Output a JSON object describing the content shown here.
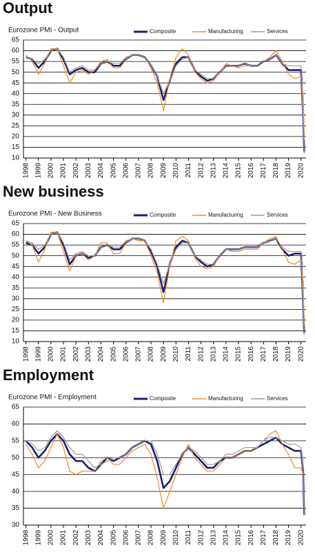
{
  "chart_data": [
    {
      "type": "line",
      "title": "Output",
      "subtitle": "Eurozone  PMI - Output",
      "legend": "top-right",
      "grid": true,
      "x": [
        1998,
        1998.5,
        1999,
        1999.5,
        2000,
        2000.5,
        2001,
        2001.5,
        2002,
        2002.5,
        2003,
        2003.5,
        2004,
        2004.5,
        2005,
        2005.5,
        2006,
        2006.5,
        2007,
        2007.5,
        2008,
        2008.5,
        2009,
        2009.5,
        2010,
        2010.5,
        2011,
        2011.5,
        2012,
        2012.5,
        2013,
        2013.5,
        2014,
        2014.5,
        2015,
        2015.5,
        2016,
        2016.5,
        2017,
        2017.5,
        2018,
        2018.5,
        2019,
        2019.5,
        2020,
        2020.17,
        2020.25
      ],
      "xlim": [
        1997.8,
        2020.4
      ],
      "xticks": [
        1998,
        1999,
        2000,
        2001,
        2002,
        2003,
        2004,
        2005,
        2006,
        2007,
        2008,
        2009,
        2010,
        2011,
        2012,
        2013,
        2014,
        2015,
        2016,
        2017,
        2018,
        2019,
        2020
      ],
      "ylim": [
        10,
        65
      ],
      "yticks": [
        10,
        15,
        20,
        25,
        30,
        35,
        40,
        45,
        50,
        55,
        60,
        65
      ],
      "series": [
        {
          "name": "Composite",
          "color": "#1a1f71",
          "values": [
            57,
            56,
            52,
            55,
            60,
            61,
            56,
            49,
            51,
            52,
            50,
            50,
            54,
            55,
            53,
            53,
            56,
            58,
            58,
            57,
            53,
            48,
            37,
            46,
            54,
            57,
            57,
            51,
            48,
            46,
            47,
            50,
            53,
            53,
            53,
            54,
            53,
            53,
            55,
            56,
            58,
            54,
            51,
            51,
            51,
            29,
            13
          ]
        },
        {
          "name": "Manufacturing",
          "color": "#f08a24",
          "values": [
            58,
            55,
            49,
            54,
            61,
            61,
            53,
            45,
            50,
            51,
            49,
            51,
            55,
            56,
            52,
            52,
            56,
            58,
            58,
            57,
            52,
            45,
            32,
            47,
            57,
            61,
            58,
            50,
            47,
            45,
            46,
            50,
            54,
            53,
            52,
            53,
            53,
            53,
            55,
            57,
            60,
            55,
            49,
            47,
            48,
            39,
            18
          ]
        },
        {
          "name": "Services",
          "color": "#9a9a9a",
          "values": [
            57,
            56,
            54,
            56,
            60,
            61,
            57,
            50,
            52,
            53,
            51,
            51,
            54,
            55,
            54,
            54,
            57,
            58,
            58,
            57,
            53,
            48,
            40,
            46,
            53,
            56,
            57,
            51,
            49,
            47,
            47,
            50,
            53,
            53,
            53,
            54,
            53,
            53,
            55,
            56,
            58,
            54,
            53,
            53,
            53,
            27,
            12
          ]
        }
      ]
    },
    {
      "type": "line",
      "title": "New business",
      "subtitle": "Eurozone  PMI - New Business",
      "legend": "top-right",
      "grid": true,
      "x": [
        1998,
        1998.5,
        1999,
        1999.5,
        2000,
        2000.5,
        2001,
        2001.5,
        2002,
        2002.5,
        2003,
        2003.5,
        2004,
        2004.5,
        2005,
        2005.5,
        2006,
        2006.5,
        2007,
        2007.5,
        2008,
        2008.5,
        2009,
        2009.5,
        2010,
        2010.5,
        2011,
        2011.5,
        2012,
        2012.5,
        2013,
        2013.5,
        2014,
        2014.5,
        2015,
        2015.5,
        2016,
        2016.5,
        2017,
        2017.5,
        2018,
        2018.5,
        2019,
        2019.5,
        2020,
        2020.17,
        2020.25
      ],
      "xlim": [
        1997.8,
        2020.4
      ],
      "xticks": [
        1998,
        1999,
        2000,
        2001,
        2002,
        2003,
        2004,
        2005,
        2006,
        2007,
        2008,
        2009,
        2010,
        2011,
        2012,
        2013,
        2014,
        2015,
        2016,
        2017,
        2018,
        2019,
        2020
      ],
      "ylim": [
        10,
        65
      ],
      "yticks": [
        10,
        15,
        20,
        25,
        30,
        35,
        40,
        45,
        50,
        55,
        60,
        65
      ],
      "series": [
        {
          "name": "Composite",
          "color": "#1a1f71",
          "values": [
            56,
            55,
            51,
            54,
            60,
            61,
            55,
            46,
            50,
            51,
            49,
            50,
            54,
            55,
            53,
            53,
            56,
            58,
            58,
            57,
            52,
            45,
            33,
            46,
            54,
            57,
            56,
            50,
            47,
            45,
            46,
            50,
            53,
            53,
            53,
            54,
            54,
            54,
            56,
            57,
            58,
            53,
            50,
            51,
            51,
            27,
            14
          ]
        },
        {
          "name": "Manufacturing",
          "color": "#f08a24",
          "values": [
            57,
            55,
            47,
            53,
            61,
            61,
            52,
            43,
            50,
            51,
            48,
            50,
            56,
            56,
            51,
            51,
            56,
            58,
            57,
            57,
            50,
            42,
            28,
            45,
            57,
            59,
            57,
            49,
            45,
            44,
            45,
            50,
            53,
            52,
            52,
            53,
            53,
            53,
            56,
            58,
            59,
            53,
            47,
            46,
            48,
            38,
            17
          ]
        },
        {
          "name": "Services",
          "color": "#9a9a9a",
          "values": [
            57,
            56,
            53,
            55,
            60,
            61,
            56,
            48,
            51,
            52,
            50,
            50,
            54,
            55,
            54,
            54,
            57,
            58,
            58,
            57,
            53,
            46,
            37,
            46,
            53,
            56,
            56,
            50,
            48,
            46,
            46,
            50,
            53,
            53,
            53,
            54,
            54,
            54,
            56,
            57,
            58,
            54,
            52,
            52,
            52,
            26,
            13
          ]
        }
      ]
    },
    {
      "type": "line",
      "title": "Employment",
      "subtitle": "Eurozone  PMI - Employment",
      "legend": "top-right",
      "grid": true,
      "x": [
        1998,
        1998.5,
        1999,
        1999.5,
        2000,
        2000.5,
        2001,
        2001.5,
        2002,
        2002.5,
        2003,
        2003.5,
        2004,
        2004.5,
        2005,
        2005.5,
        2006,
        2006.5,
        2007,
        2007.5,
        2008,
        2008.5,
        2009,
        2009.5,
        2010,
        2010.5,
        2011,
        2011.5,
        2012,
        2012.5,
        2013,
        2013.5,
        2014,
        2014.5,
        2015,
        2015.5,
        2016,
        2016.5,
        2017,
        2017.5,
        2018,
        2018.5,
        2019,
        2019.5,
        2020,
        2020.17,
        2020.25
      ],
      "xlim": [
        1997.8,
        2020.4
      ],
      "xticks": [
        1998,
        1999,
        2000,
        2001,
        2002,
        2003,
        2004,
        2005,
        2006,
        2007,
        2008,
        2009,
        2010,
        2011,
        2012,
        2013,
        2014,
        2015,
        2016,
        2017,
        2018,
        2019,
        2020
      ],
      "ylim": [
        30,
        65
      ],
      "yticks": [
        30,
        35,
        40,
        45,
        50,
        55,
        60,
        65
      ],
      "series": [
        {
          "name": "Composite",
          "color": "#1a1f71",
          "values": [
            55,
            53,
            50,
            52,
            55,
            57,
            55,
            51,
            49,
            49,
            47,
            46,
            48,
            50,
            49,
            50,
            51,
            53,
            54,
            55,
            54,
            49,
            41,
            43,
            47,
            51,
            53,
            51,
            49,
            47,
            47,
            49,
            50,
            50,
            51,
            52,
            52,
            53,
            54,
            55,
            56,
            54,
            53,
            52,
            52,
            46,
            33
          ]
        },
        {
          "name": "Manufacturing",
          "color": "#f08a24",
          "values": [
            54,
            51,
            47,
            49,
            53,
            57,
            53,
            46,
            45,
            46,
            46,
            46,
            49,
            50,
            48,
            48,
            50,
            52,
            53,
            54,
            51,
            44,
            35,
            40,
            45,
            50,
            54,
            50,
            48,
            46,
            46,
            48,
            50,
            50,
            51,
            52,
            52,
            53,
            55,
            57,
            58,
            54,
            51,
            47,
            47,
            45,
            35
          ]
        },
        {
          "name": "Services",
          "color": "#9a9a9a",
          "values": [
            55,
            54,
            52,
            53,
            56,
            58,
            56,
            53,
            51,
            51,
            49,
            47,
            48,
            49,
            50,
            50,
            51,
            53,
            54,
            55,
            55,
            51,
            45,
            45,
            48,
            51,
            53,
            52,
            50,
            48,
            48,
            49,
            51,
            51,
            52,
            53,
            53,
            53,
            55,
            56,
            56,
            55,
            54,
            54,
            53,
            46,
            33
          ]
        }
      ]
    }
  ]
}
